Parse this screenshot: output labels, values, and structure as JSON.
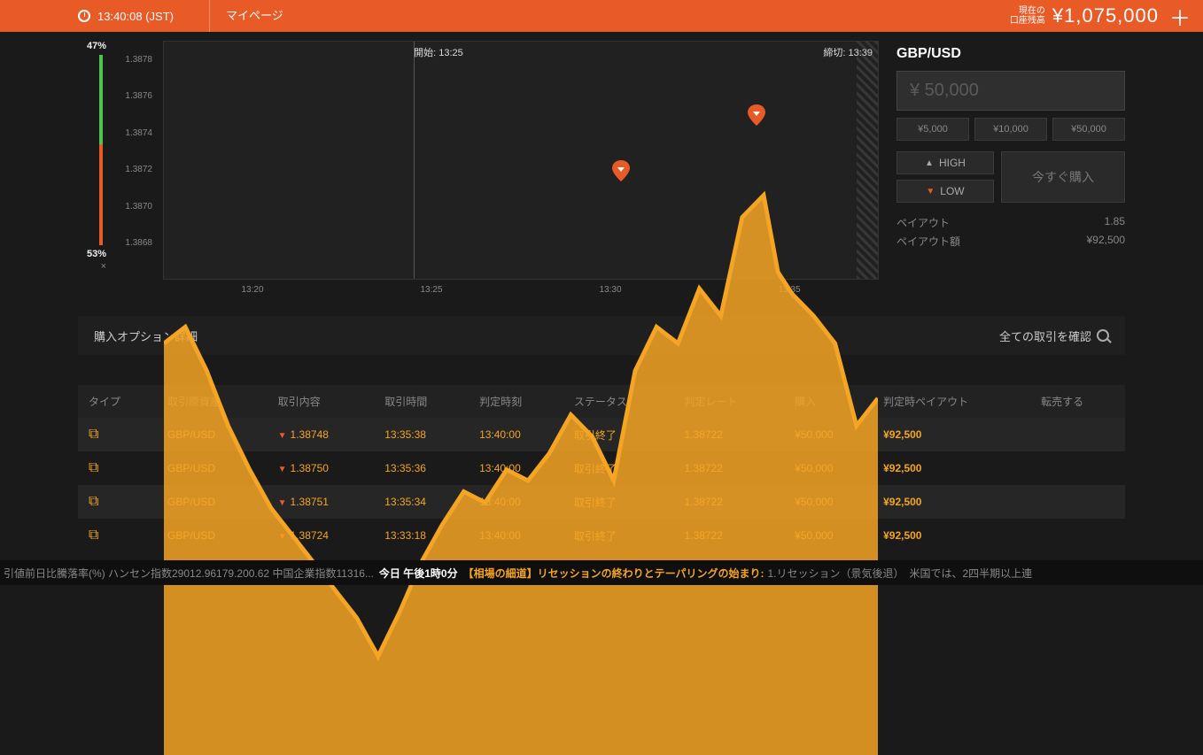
{
  "topbar": {
    "time": "13:40:08 (JST)",
    "mypage": "マイページ",
    "balance_label": "現在の\n口座残高",
    "balance_value": "¥1,075,000"
  },
  "sentiment": {
    "up_pct": "47%",
    "down_pct": "53%",
    "close": "×",
    "split": 47
  },
  "chart": {
    "pair": "GBP/USD",
    "y_ticks": [
      "1.3878",
      "1.3876",
      "1.3874",
      "1.3872",
      "1.3870",
      "1.3868"
    ],
    "y_min": 1.3866,
    "y_max": 1.3879,
    "x_ticks": [
      "13:20",
      "13:25",
      "13:30",
      "13:35"
    ],
    "start_label": "開始: 13:25",
    "close_label": "締切: 13:39",
    "line_color": "#f5a524",
    "fill_color": "#f5a524",
    "bg_color": "#212121",
    "points": [
      [
        0.0,
        1.38735
      ],
      [
        0.03,
        1.38738
      ],
      [
        0.06,
        1.3873
      ],
      [
        0.09,
        1.3872
      ],
      [
        0.12,
        1.38712
      ],
      [
        0.15,
        1.38705
      ],
      [
        0.18,
        1.387
      ],
      [
        0.21,
        1.38695
      ],
      [
        0.24,
        1.3869
      ],
      [
        0.27,
        1.38685
      ],
      [
        0.3,
        1.38678
      ],
      [
        0.33,
        1.38686
      ],
      [
        0.36,
        1.38695
      ],
      [
        0.39,
        1.38702
      ],
      [
        0.42,
        1.38708
      ],
      [
        0.45,
        1.38706
      ],
      [
        0.48,
        1.38712
      ],
      [
        0.51,
        1.3871
      ],
      [
        0.54,
        1.38715
      ],
      [
        0.57,
        1.38722
      ],
      [
        0.6,
        1.38718
      ],
      [
        0.63,
        1.3871
      ],
      [
        0.66,
        1.3873
      ],
      [
        0.69,
        1.38738
      ],
      [
        0.72,
        1.38735
      ],
      [
        0.75,
        1.38745
      ],
      [
        0.78,
        1.3874
      ],
      [
        0.81,
        1.38758
      ],
      [
        0.84,
        1.38762
      ],
      [
        0.86,
        1.38748
      ],
      [
        0.88,
        1.38744
      ],
      [
        0.91,
        1.3874
      ],
      [
        0.94,
        1.38735
      ],
      [
        0.97,
        1.3872
      ],
      [
        1.0,
        1.38725
      ]
    ],
    "markers": [
      {
        "x": 0.64,
        "y": 1.38715
      },
      {
        "x": 0.83,
        "y": 1.38745
      }
    ]
  },
  "panel": {
    "amount_placeholder": "¥ 50,000",
    "presets": [
      "¥5,000",
      "¥10,000",
      "¥50,000"
    ],
    "high": "HIGH",
    "low": "LOW",
    "buy_now": "今すぐ購入",
    "payout_label": "ペイアウト",
    "payout_value": "1.85",
    "payout_amt_label": "ペイアウト額",
    "payout_amt_value": "¥92,500"
  },
  "details": {
    "title": "購入オプション詳細",
    "confirm": "全ての取引を確認"
  },
  "table": {
    "columns": [
      "タイプ",
      "取引原資産",
      "取引内容",
      "取引時間",
      "判定時刻",
      "ステータス",
      "判定レート",
      "購入",
      "判定時ペイアウト",
      "転売する"
    ],
    "rows": [
      {
        "asset": "GBP/USD",
        "rate": "1.38748",
        "trade_time": "13:35:38",
        "judg_time": "13:40:00",
        "status": "取引終了",
        "judg_rate": "1.38722",
        "buy": "¥50,000",
        "payout": "¥92,500"
      },
      {
        "asset": "GBP/USD",
        "rate": "1.38750",
        "trade_time": "13:35:36",
        "judg_time": "13:40:00",
        "status": "取引終了",
        "judg_rate": "1.38722",
        "buy": "¥50,000",
        "payout": "¥92,500"
      },
      {
        "asset": "GBP/USD",
        "rate": "1.38751",
        "trade_time": "13:35:34",
        "judg_time": "13:40:00",
        "status": "取引終了",
        "judg_rate": "1.38722",
        "buy": "¥50,000",
        "payout": "¥92,500"
      },
      {
        "asset": "GBP/USD",
        "rate": "1.38724",
        "trade_time": "13:33:18",
        "judg_time": "13:40:00",
        "status": "取引終了",
        "judg_rate": "1.38722",
        "buy": "¥50,000",
        "payout": "¥92,500"
      }
    ]
  },
  "ticker": {
    "pre": "引値前日比騰落率(%) ハンセン指数29012.96179.200.62 中国企業指数11316...",
    "today": "今日 午後1時0分",
    "headline": "【相場の細道】リセッションの終わりとテーパリングの始まり:",
    "rest": "1.リセッション（景気後退）　米国では、2四半期以上連"
  }
}
